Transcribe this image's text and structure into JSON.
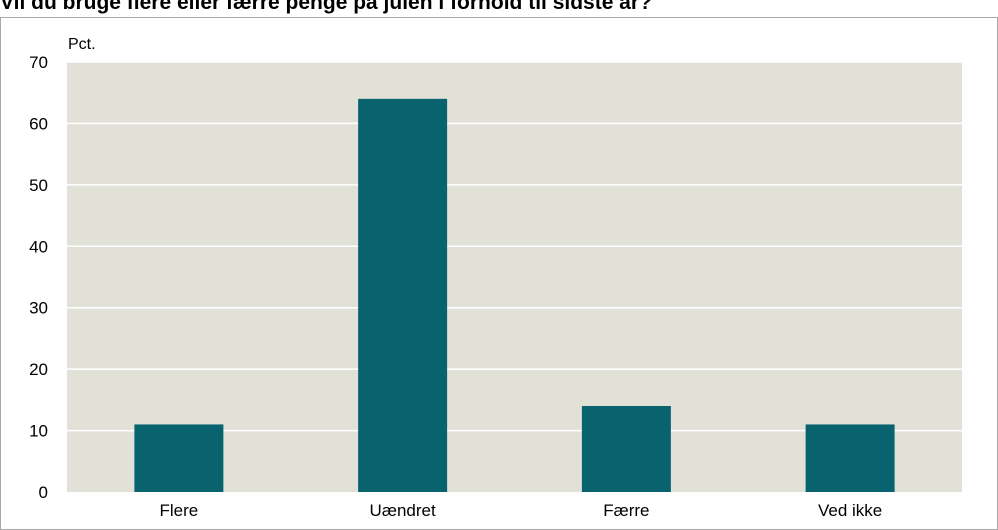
{
  "title": "Vil du bruge flere eller færre penge på julen i forhold til sidste år?",
  "chart_data": {
    "type": "bar",
    "categories": [
      "Flere",
      "Uændret",
      "Færre",
      "Ved ikke"
    ],
    "values": [
      11,
      64,
      14,
      11
    ],
    "unit_label": "Pct.",
    "ylim": [
      0,
      70
    ],
    "yticks": [
      0,
      10,
      20,
      30,
      40,
      50,
      60,
      70
    ],
    "grid": true,
    "legend": "none",
    "bar_color": "#08636f",
    "plot_background": "#e2e1d8",
    "grid_color": "#ffffff"
  }
}
